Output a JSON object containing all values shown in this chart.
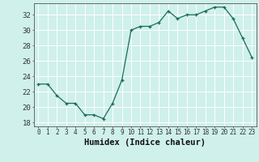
{
  "x": [
    0,
    1,
    2,
    3,
    4,
    5,
    6,
    7,
    8,
    9,
    10,
    11,
    12,
    13,
    14,
    15,
    16,
    17,
    18,
    19,
    20,
    21,
    22,
    23
  ],
  "y": [
    23,
    23,
    21.5,
    20.5,
    20.5,
    19,
    19,
    18.5,
    20.5,
    23.5,
    30,
    30.5,
    30.5,
    31,
    32.5,
    31.5,
    32,
    32,
    32.5,
    33,
    33,
    31.5,
    29,
    26.5
  ],
  "line_color": "#1a6b5a",
  "marker": "+",
  "marker_color": "#1a6b5a",
  "xlabel": "Humidex (Indice chaleur)",
  "ylim": [
    17.5,
    33.5
  ],
  "xlim": [
    -0.5,
    23.5
  ],
  "yticks": [
    18,
    20,
    22,
    24,
    26,
    28,
    30,
    32
  ],
  "xticks": [
    0,
    1,
    2,
    3,
    4,
    5,
    6,
    7,
    8,
    9,
    10,
    11,
    12,
    13,
    14,
    15,
    16,
    17,
    18,
    19,
    20,
    21,
    22,
    23
  ],
  "bg_color": "#cff0eb",
  "grid_color": "#ffffff",
  "axis_color": "#555555",
  "xlabel_fontsize": 7.5,
  "ytick_fontsize": 6.5,
  "xtick_fontsize": 5.5
}
